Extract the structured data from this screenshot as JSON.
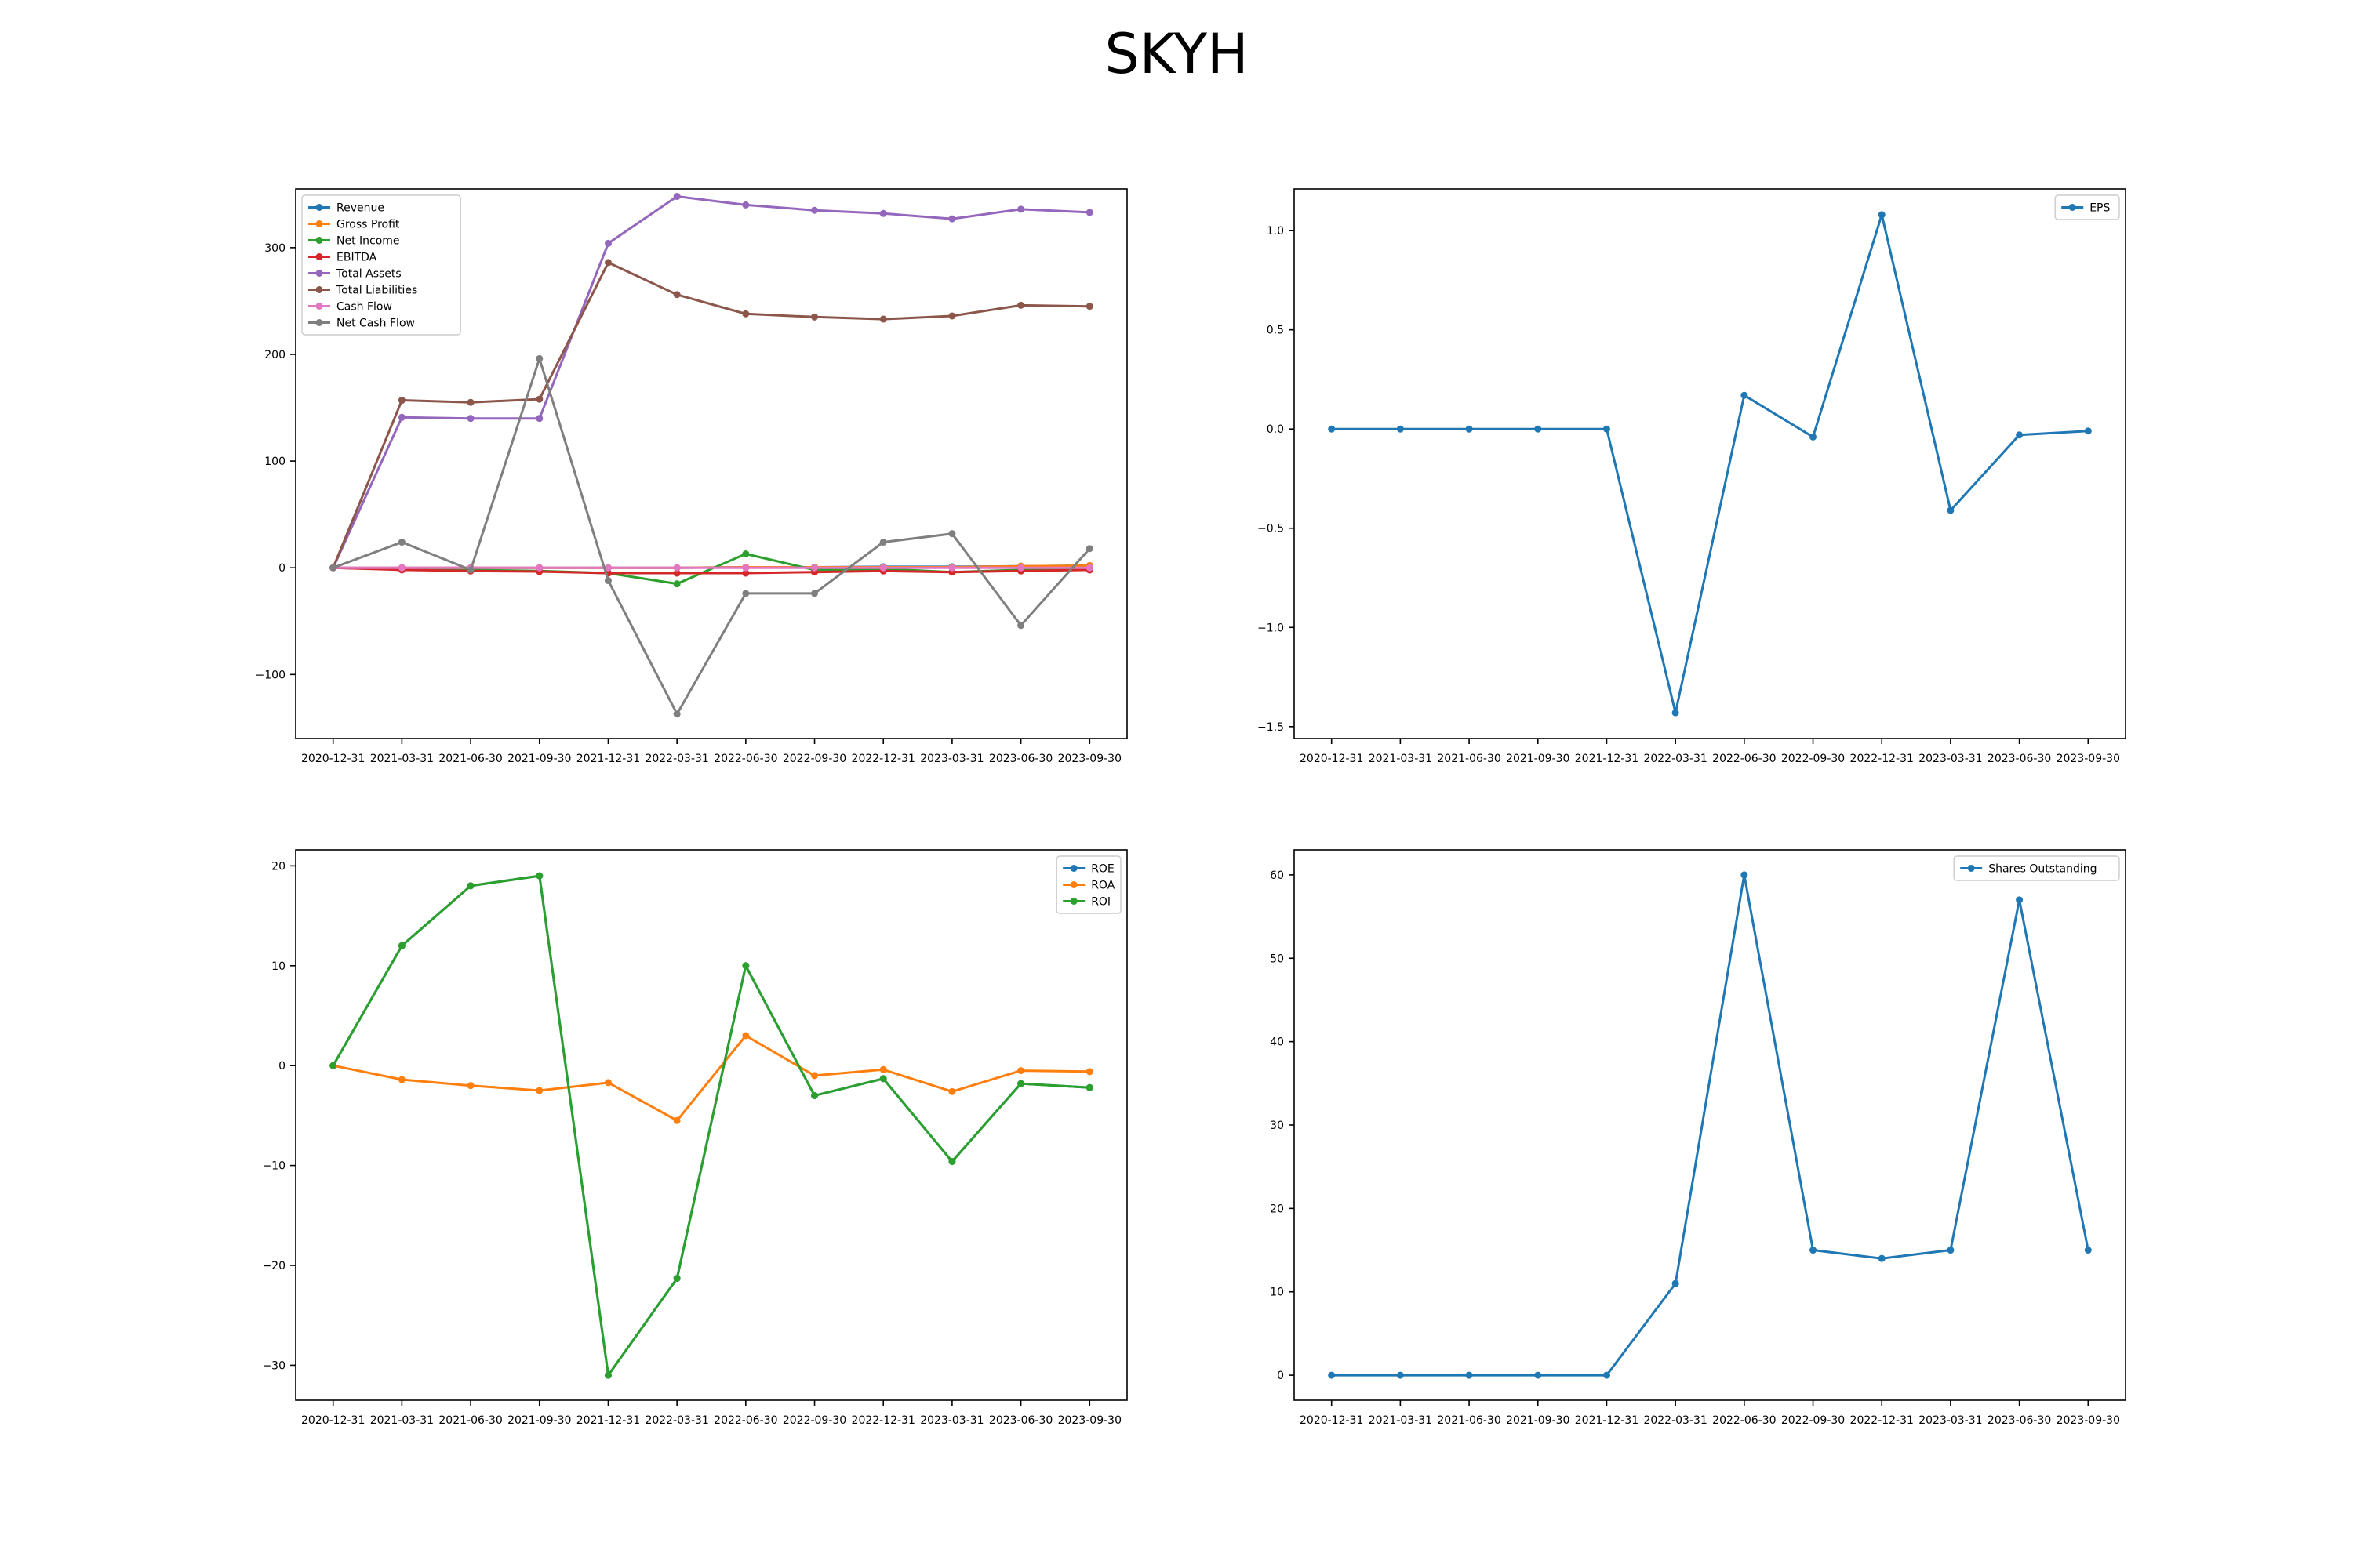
{
  "figure": {
    "title": "SKYH"
  },
  "chart_data": [
    {
      "type": "line",
      "x": [
        "2020-12-31",
        "2021-03-31",
        "2021-06-30",
        "2021-09-30",
        "2021-12-31",
        "2022-03-31",
        "2022-06-30",
        "2022-09-30",
        "2022-12-31",
        "2023-03-31",
        "2023-06-30",
        "2023-09-30"
      ],
      "ylim": [
        -160,
        355
      ],
      "yticks": [
        -100,
        0,
        100,
        200,
        300
      ],
      "legend": "top-left",
      "series": [
        {
          "name": "Revenue",
          "color": "#1f77b4",
          "values": [
            0,
            0,
            0,
            0,
            0,
            0,
            0.5,
            0.5,
            1,
            1,
            1.5,
            2
          ]
        },
        {
          "name": "Gross Profit",
          "color": "#ff7f0e",
          "values": [
            0,
            0,
            0,
            0,
            0,
            0,
            0.5,
            0.5,
            0.5,
            0.5,
            1.5,
            2
          ]
        },
        {
          "name": "Net Income",
          "color": "#2ca02c",
          "values": [
            0,
            -1.5,
            -2,
            -3,
            -5,
            -15,
            13,
            -2,
            -1,
            -4,
            -2,
            -2
          ]
        },
        {
          "name": "EBITDA",
          "color": "#d62728",
          "values": [
            0,
            -2,
            -3,
            -3.5,
            -5,
            -5,
            -5,
            -4,
            -3,
            -4,
            -3,
            -2
          ]
        },
        {
          "name": "Total Assets",
          "color": "#9467bd",
          "values": [
            0,
            141,
            140,
            140,
            304,
            348,
            340,
            335,
            332,
            327,
            336,
            333
          ]
        },
        {
          "name": "Total Liabilities",
          "color": "#8c564b",
          "values": [
            0,
            157,
            155,
            158,
            286,
            256,
            238,
            235,
            233,
            236,
            246,
            245
          ]
        },
        {
          "name": "Cash Flow",
          "color": "#e377c2",
          "values": [
            0,
            0,
            0,
            0,
            0,
            0,
            0,
            0,
            0,
            0,
            0,
            0
          ]
        },
        {
          "name": "Net Cash Flow",
          "color": "#7f7f7f",
          "values": [
            0,
            24,
            -2,
            196,
            -12,
            -137,
            -24,
            -24,
            24,
            32,
            -54,
            18
          ]
        }
      ]
    },
    {
      "type": "line",
      "x": [
        "2020-12-31",
        "2021-03-31",
        "2021-06-30",
        "2021-09-30",
        "2021-12-31",
        "2022-03-31",
        "2022-06-30",
        "2022-09-30",
        "2022-12-31",
        "2023-03-31",
        "2023-06-30",
        "2023-09-30"
      ],
      "ylim": [
        -1.56,
        1.21
      ],
      "yticks": [
        -1.5,
        -1.0,
        -0.5,
        0.0,
        0.5,
        1.0
      ],
      "legend": "top-right",
      "series": [
        {
          "name": "EPS",
          "color": "#1f77b4",
          "values": [
            0,
            0,
            0,
            0,
            0,
            -1.43,
            0.17,
            -0.04,
            1.08,
            -0.41,
            -0.03,
            -0.01
          ]
        }
      ]
    },
    {
      "type": "line",
      "x": [
        "2020-12-31",
        "2021-03-31",
        "2021-06-30",
        "2021-09-30",
        "2021-12-31",
        "2022-03-31",
        "2022-06-30",
        "2022-09-30",
        "2022-12-31",
        "2023-03-31",
        "2023-06-30",
        "2023-09-30"
      ],
      "ylim": [
        -33.5,
        21.6
      ],
      "yticks": [
        -30,
        -20,
        -10,
        0,
        10,
        20
      ],
      "legend": "top-right",
      "series": [
        {
          "name": "ROE",
          "color": "#1f77b4",
          "values": [
            0,
            12,
            18,
            19,
            -31,
            -21.3,
            10,
            -3,
            -1.3,
            -9.6,
            -1.8,
            -2.2
          ]
        },
        {
          "name": "ROA",
          "color": "#ff7f0e",
          "values": [
            0,
            -1.4,
            -2,
            -2.5,
            -1.7,
            -5.5,
            3,
            -1,
            -0.4,
            -2.6,
            -0.5,
            -0.6
          ]
        },
        {
          "name": "ROI",
          "color": "#2ca02c",
          "values": [
            0,
            12,
            18,
            19,
            -31,
            -21.3,
            10,
            -3,
            -1.3,
            -9.6,
            -1.8,
            -2.2
          ]
        }
      ]
    },
    {
      "type": "line",
      "x": [
        "2020-12-31",
        "2021-03-31",
        "2021-06-30",
        "2021-09-30",
        "2021-12-31",
        "2022-03-31",
        "2022-06-30",
        "2022-09-30",
        "2022-12-31",
        "2023-03-31",
        "2023-06-30",
        "2023-09-30"
      ],
      "ylim": [
        -3,
        63
      ],
      "yticks": [
        0,
        10,
        20,
        30,
        40,
        50,
        60
      ],
      "legend": "top-right",
      "series": [
        {
          "name": "Shares Outstanding",
          "color": "#1f77b4",
          "values": [
            0,
            0,
            0,
            0,
            0,
            11,
            60,
            15,
            14,
            15,
            57,
            15
          ]
        }
      ]
    }
  ]
}
